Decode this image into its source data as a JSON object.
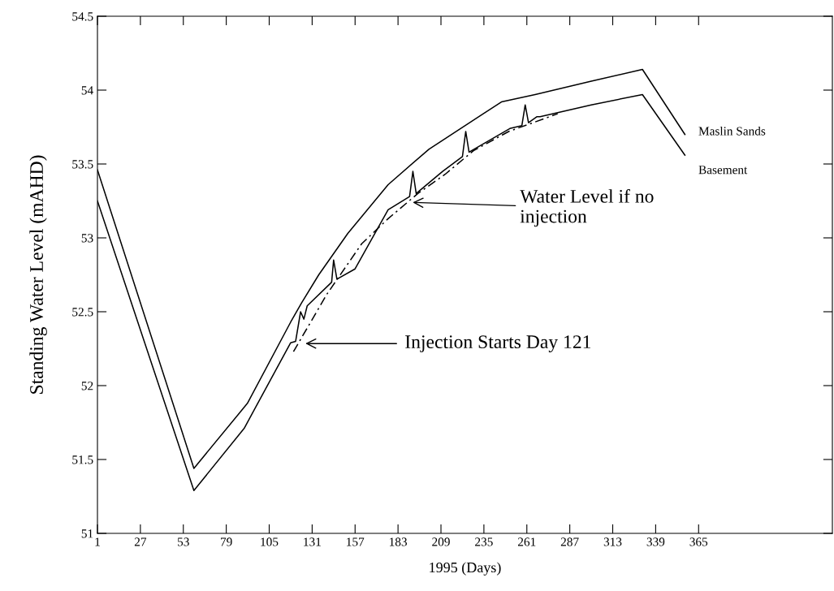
{
  "chart_data": {
    "type": "line",
    "xlabel": "1995 (Days)",
    "ylabel": "Standing Water Level (mAHD)",
    "xlim": [
      1,
      446
    ],
    "ylim": [
      51,
      54.5
    ],
    "xticks": [
      1,
      27,
      53,
      79,
      105,
      131,
      157,
      183,
      209,
      235,
      261,
      287,
      313,
      339,
      365
    ],
    "yticks": [
      51,
      51.5,
      52,
      52.5,
      53,
      53.5,
      54,
      54.5
    ],
    "grid": false,
    "legend": false,
    "marker": "none",
    "series": [
      {
        "name": "Maslin Sands",
        "color": "#000000",
        "line_style": "solid",
        "x": [
          1,
          59.4,
          91.8,
          118,
          124.6,
          135,
          152.6,
          177,
          201.7,
          234.6,
          245.6,
          266,
          300,
          331,
          356.7
        ],
        "values": [
          53.46,
          51.44,
          51.88,
          52.43,
          52.56,
          52.75,
          53.03,
          53.36,
          53.6,
          53.84,
          53.92,
          53.97,
          54.06,
          54.14,
          53.7
        ]
      },
      {
        "name": "Basement",
        "color": "#000000",
        "line_style": "solid",
        "x": [
          1,
          59.4,
          89.8,
          118,
          121,
          124,
          126,
          128,
          142.8,
          144,
          146,
          157,
          177,
          190,
          192,
          194,
          210,
          222,
          224,
          226,
          250.7,
          258,
          260,
          262,
          267,
          269,
          300,
          331,
          356.7
        ],
        "values": [
          53.25,
          51.29,
          51.71,
          52.29,
          52.3,
          52.5,
          52.45,
          52.54,
          52.7,
          52.85,
          52.72,
          52.79,
          53.19,
          53.28,
          53.45,
          53.3,
          53.45,
          53.55,
          53.72,
          53.58,
          53.74,
          53.76,
          53.9,
          53.78,
          53.82,
          53.82,
          53.9,
          53.97,
          53.56
        ]
      },
      {
        "color": "#000000",
        "line_style": "dashed",
        "x": [
          119.7,
          140,
          161,
          177,
          195,
          211.5,
          228.7,
          250,
          279.7
        ],
        "values": [
          52.23,
          52.62,
          52.96,
          53.13,
          53.3,
          53.43,
          53.59,
          53.72,
          53.84
        ]
      }
    ],
    "annotations": [
      "Injection Starts Day 121",
      {
        "text": "Water Level if no\ninjection",
        "x": 191.9,
        "y": 53.24
      }
    ]
  }
}
